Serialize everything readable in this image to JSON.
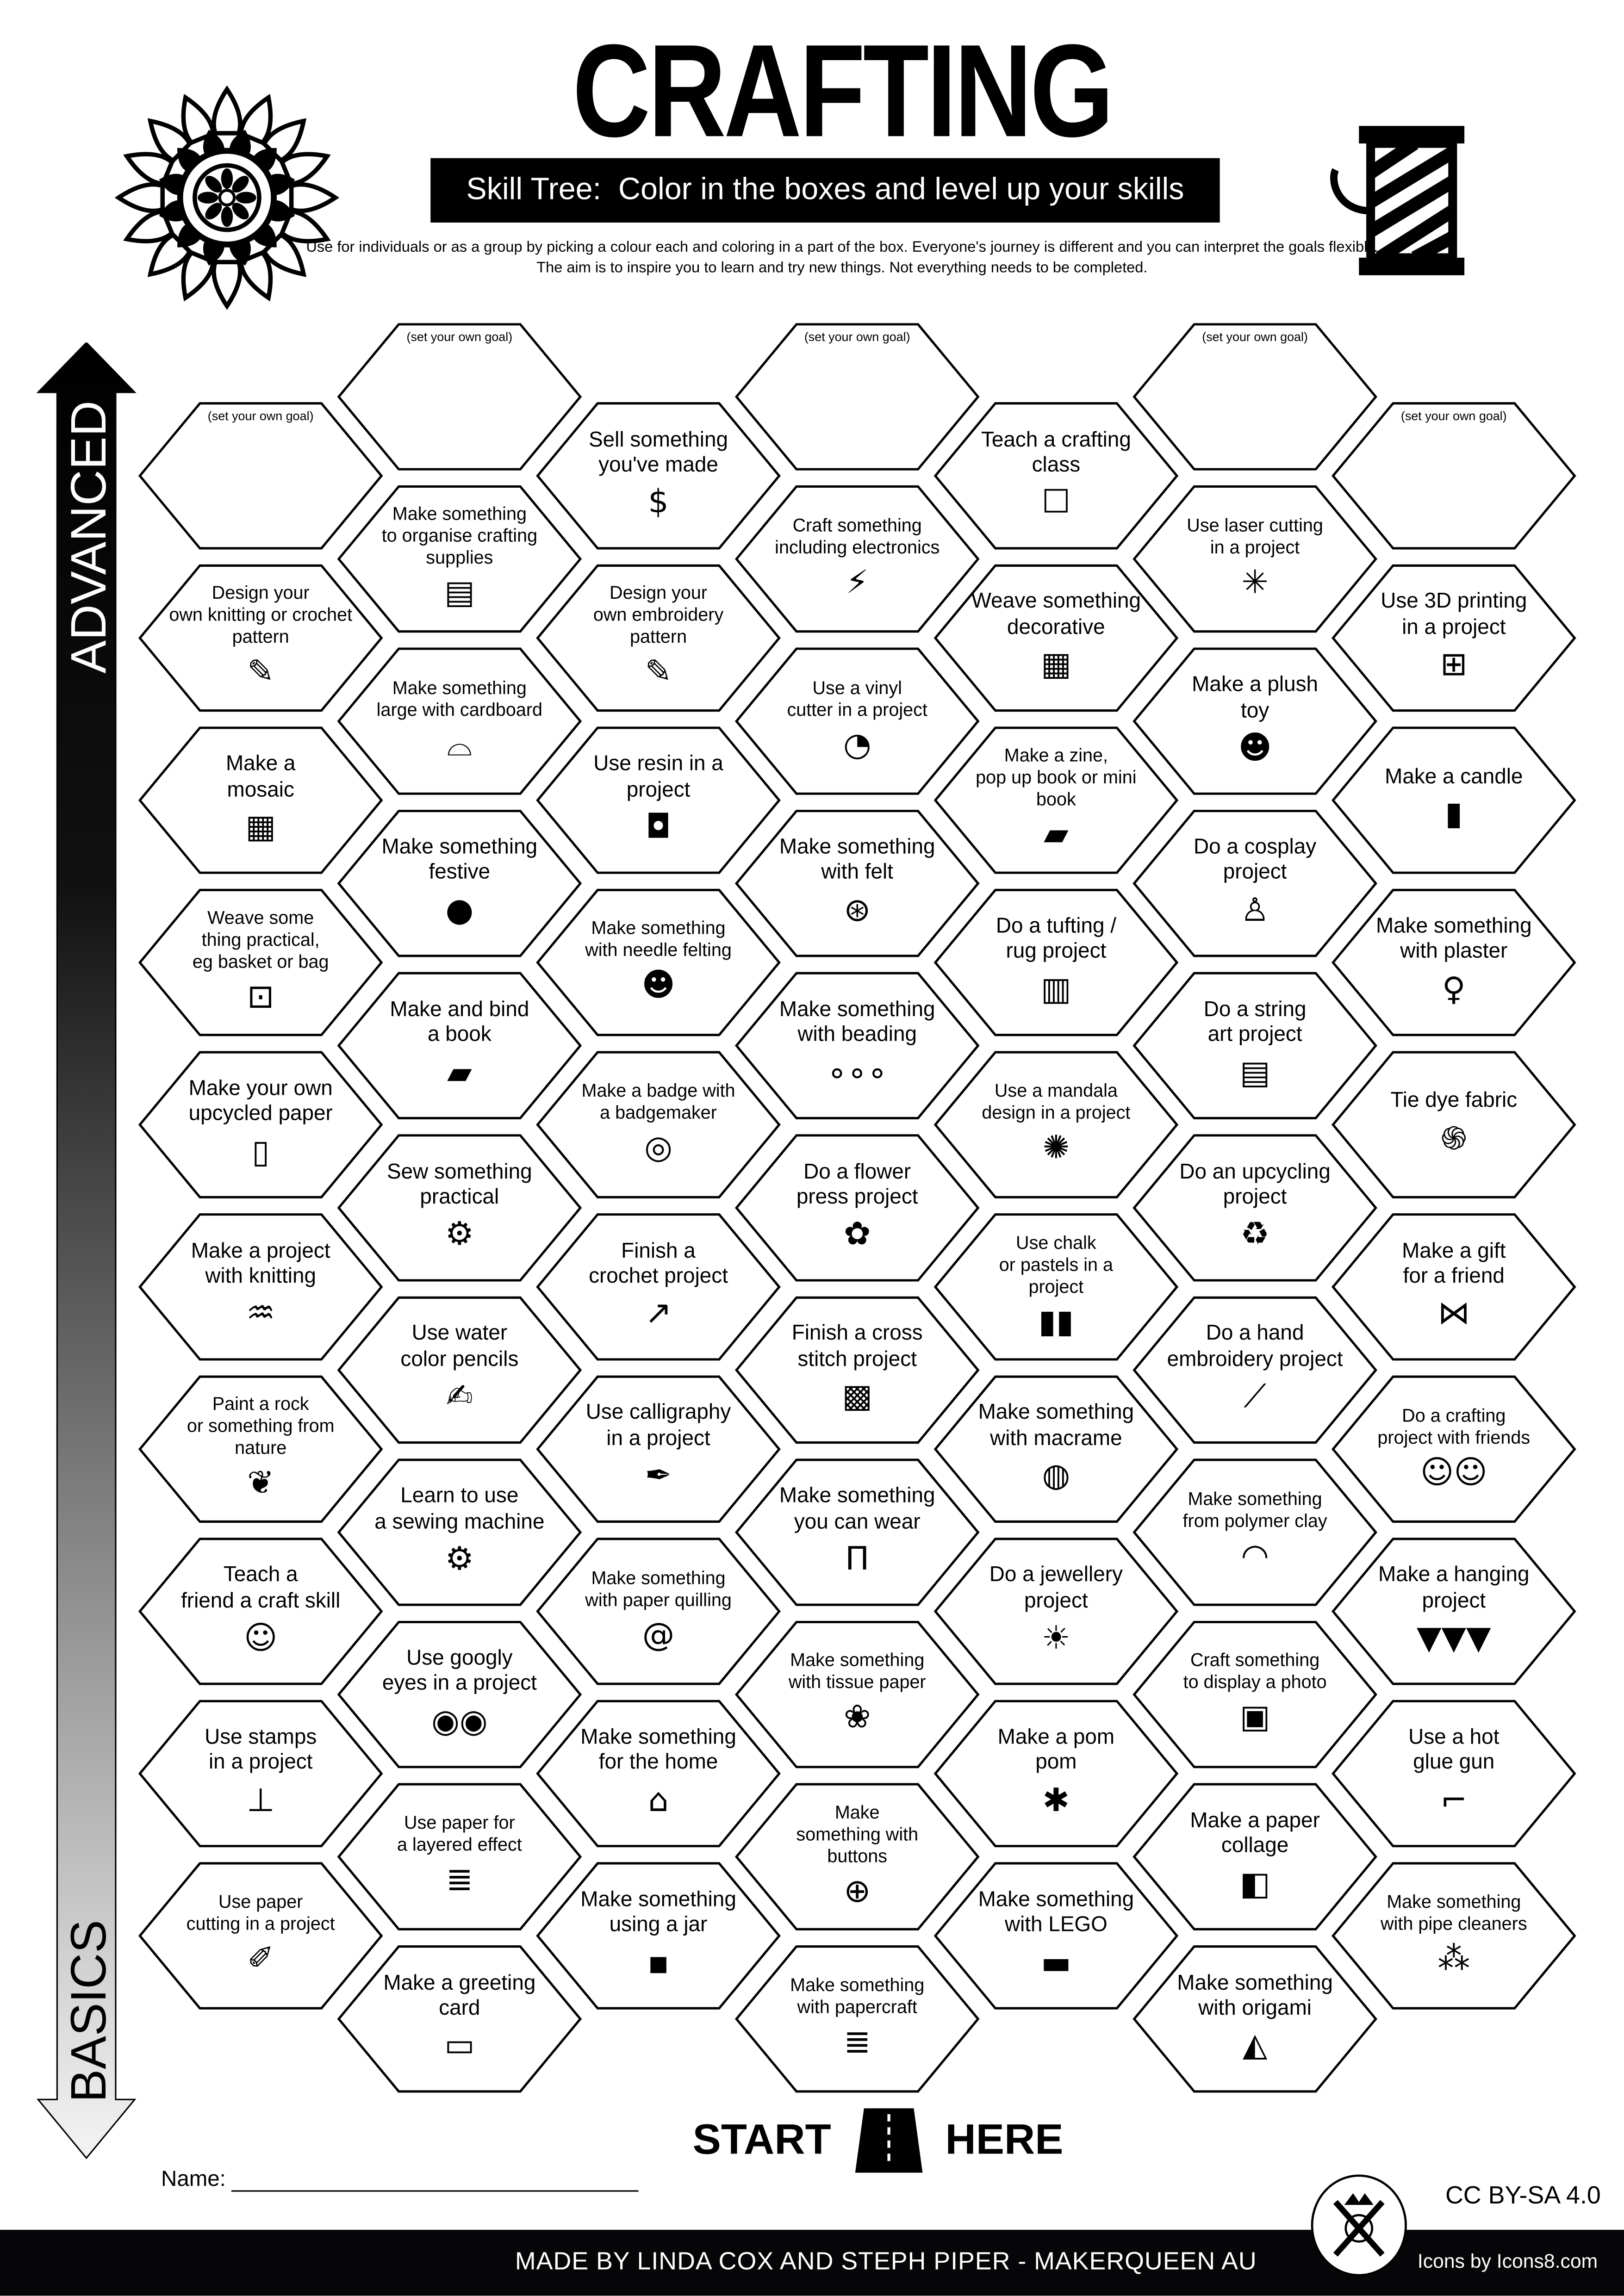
{
  "header": {
    "title": "CRAFTING",
    "subtitle": "Skill Tree:  Color in the boxes and level up your skills",
    "intro": "Use for individuals or as a group by picking a colour each and coloring in a part of the box.  Everyone's journey is different and you can interpret the goals flexibly.  The aim is to inspire you to learn and try new things. Not everything needs to be completed.",
    "left_icon": "mandala-icon",
    "right_icon": "thread-spool-icon"
  },
  "axis": {
    "top_label": "ADVANCED",
    "bottom_label": "BASICS"
  },
  "colors": {
    "ink": "#000000",
    "paper": "#ffffff",
    "footer": "#060608"
  },
  "goal_label": "(set your own goal)",
  "columns": [
    [
      {
        "text": "(set your own goal)",
        "icon": "none",
        "goal": true
      },
      {
        "text": "Design your\nown knitting or crochet\npattern",
        "icon": "pattern"
      },
      {
        "text": "Make a\nmosaic",
        "icon": "mosaic"
      },
      {
        "text": "Weave some\nthing practical,\neg basket or bag",
        "icon": "bag"
      },
      {
        "text": "Make your own\nupcycled paper",
        "icon": "scroll"
      },
      {
        "text": "Make a project\nwith knitting",
        "icon": "knitting"
      },
      {
        "text": "Paint a rock\nor something from\nnature",
        "icon": "leaf"
      },
      {
        "text": "Teach a\nfriend a craft skill",
        "icon": "teacher"
      },
      {
        "text": "Use stamps\nin a project",
        "icon": "stamp"
      },
      {
        "text": "Use paper\ncutting in a project",
        "icon": "craft-knife"
      }
    ],
    [
      {
        "text": "(set your own goal)",
        "icon": "none",
        "goal": true
      },
      {
        "text": "Make something\nto organise crafting\nsupplies",
        "icon": "organizer"
      },
      {
        "text": "Make something\nlarge with cardboard",
        "icon": "cardboard"
      },
      {
        "text": "Make something\nfestive",
        "icon": "ornament"
      },
      {
        "text": "Make and bind\na book",
        "icon": "book"
      },
      {
        "text": "Sew something\npractical",
        "icon": "sewing-machine"
      },
      {
        "text": "Use water\ncolor pencils",
        "icon": "brush"
      },
      {
        "text": "Learn to use\na sewing machine",
        "icon": "sewing-machine"
      },
      {
        "text": "Use googly\neyes in a project",
        "icon": "googly-eyes"
      },
      {
        "text": "Use paper for\na layered effect",
        "icon": "paper-stack"
      },
      {
        "text": "Make a greeting\ncard",
        "icon": "card"
      }
    ],
    [
      {
        "text": "Sell something\nyou've made",
        "icon": "money-bag"
      },
      {
        "text": "Design your\nown embroidery\npattern",
        "icon": "pattern"
      },
      {
        "text": "Use resin in a\nproject",
        "icon": "resin"
      },
      {
        "text": "Make something\nwith needle felting",
        "icon": "felt-animal"
      },
      {
        "text": "Make a badge with\na badgemaker",
        "icon": "badge"
      },
      {
        "text": "Finish a\ncrochet project",
        "icon": "crochet-hook"
      },
      {
        "text": "Use calligraphy\nin a project",
        "icon": "fountain-pen"
      },
      {
        "text": "Make something\nwith paper quilling",
        "icon": "spiral"
      },
      {
        "text": "Make something\nfor the home",
        "icon": "home"
      },
      {
        "text": "Make something\nusing a jar",
        "icon": "jar"
      }
    ],
    [
      {
        "text": "(set your own goal)",
        "icon": "none",
        "goal": true
      },
      {
        "text": "Craft something\nincluding electronics",
        "icon": "led"
      },
      {
        "text": "Use a vinyl\ncutter in a project",
        "icon": "sticker"
      },
      {
        "text": "Make something\nwith felt",
        "icon": "yarn"
      },
      {
        "text": "Make something\nwith beading",
        "icon": "beads"
      },
      {
        "text": "Do a flower\npress project",
        "icon": "flower"
      },
      {
        "text": "Finish a cross\nstitch project",
        "icon": "cross-stitch"
      },
      {
        "text": "Make something\nyou can wear",
        "icon": "trousers"
      },
      {
        "text": "Make something\nwith tissue paper",
        "icon": "lotus"
      },
      {
        "text": "Make\nsomething with\nbuttons",
        "icon": "button"
      },
      {
        "text": "Make something\nwith papercraft",
        "icon": "paper-stack"
      }
    ],
    [
      {
        "text": "Teach a crafting\nclass",
        "icon": "teacher-board"
      },
      {
        "text": "Weave something\ndecorative",
        "icon": "weave"
      },
      {
        "text": "Make a zine,\npop up book or mini book",
        "icon": "book"
      },
      {
        "text": "Do a tufting /\nrug project",
        "icon": "rug"
      },
      {
        "text": "Use a mandala\ndesign in a project",
        "icon": "mandala"
      },
      {
        "text": "Use chalk\nor pastels in a\nproject",
        "icon": "pastels"
      },
      {
        "text": "Make something\nwith macrame",
        "icon": "dreamcatcher"
      },
      {
        "text": "Do a jewellery\nproject",
        "icon": "necklace"
      },
      {
        "text": "Make a pom\npom",
        "icon": "pom-pom"
      },
      {
        "text": "Make something\nwith LEGO",
        "icon": "lego"
      }
    ],
    [
      {
        "text": "(set your own goal)",
        "icon": "none",
        "goal": true
      },
      {
        "text": "Use laser cutting\nin a project",
        "icon": "laser"
      },
      {
        "text": "Make a plush\ntoy",
        "icon": "teddy-bear"
      },
      {
        "text": "Do a cosplay\nproject",
        "icon": "mannequin"
      },
      {
        "text": "Do a string\nart project",
        "icon": "spool"
      },
      {
        "text": "Do an upcycling\nproject",
        "icon": "recycle"
      },
      {
        "text": "Do a hand\nembroidery project",
        "icon": "needle"
      },
      {
        "text": "Make something\nfrom polymer clay",
        "icon": "rainbow"
      },
      {
        "text": "Craft something\nto display a photo",
        "icon": "picture"
      },
      {
        "text": "Make a paper\ncollage",
        "icon": "collage"
      },
      {
        "text": "Make something\nwith origami",
        "icon": "origami"
      }
    ],
    [
      {
        "text": "(set your own goal)",
        "icon": "none",
        "goal": true
      },
      {
        "text": "Use 3D printing\nin a project",
        "icon": "3d-printer"
      },
      {
        "text": "Make a candle",
        "icon": "candle"
      },
      {
        "text": "Make something\nwith plaster",
        "icon": "statue"
      },
      {
        "text": "Tie dye fabric",
        "icon": "swirl"
      },
      {
        "text": "Make a gift\nfor a friend",
        "icon": "gift-bow"
      },
      {
        "text": "Do a crafting\nproject with friends",
        "icon": "group"
      },
      {
        "text": "Make a hanging\nproject",
        "icon": "bunting"
      },
      {
        "text": "Use a hot\nglue gun",
        "icon": "glue-gun"
      },
      {
        "text": "Make something\nwith pipe cleaners",
        "icon": "pipe-cleaner"
      }
    ]
  ],
  "start": {
    "left": "START",
    "right": "HERE",
    "icon": "road-icon"
  },
  "name_label": "Name:",
  "license": "CC BY-SA 4.0",
  "footer": {
    "credits": "MADE BY LINDA COX  AND STEPH PIPER  -  MAKERQUEEN AU",
    "icons_credit": "Icons by Icons8.com",
    "logo_icon": "makerqueen-logo-icon"
  }
}
